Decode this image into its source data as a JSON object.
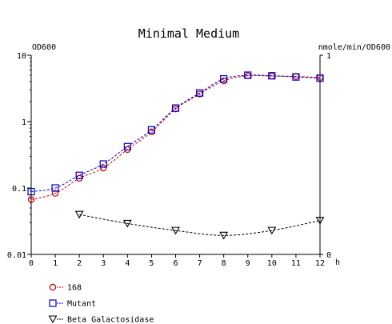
{
  "chart_data": {
    "type": "line",
    "title": "Minimal Medium",
    "xlabel": "h",
    "y_left_label": "OD600",
    "y_right_label": "nmole/min/OD600",
    "x_ticks": [
      "0",
      "1",
      "2",
      "3",
      "4",
      "5",
      "6",
      "7",
      "8",
      "9",
      "10",
      "11",
      "12"
    ],
    "y_left_ticks": [
      "10",
      "1",
      "0.1",
      "0.01"
    ],
    "y_right_ticks": [
      "1",
      "0"
    ],
    "y_left_scale": "log",
    "y_left_range": [
      0.01,
      10
    ],
    "y_right_range": [
      0,
      1
    ],
    "x_range": [
      0,
      12
    ],
    "grid": false,
    "legend_position": "bottom-left",
    "series": [
      {
        "name": "168",
        "axis": "left",
        "color": "#cc0000",
        "marker": "circle",
        "x": [
          0,
          1,
          2,
          3,
          4,
          5,
          6,
          7,
          8,
          9,
          10,
          11,
          12
        ],
        "y": [
          0.067,
          0.083,
          0.14,
          0.2,
          0.38,
          0.7,
          1.55,
          2.6,
          4.1,
          4.9,
          4.85,
          4.8,
          4.6
        ]
      },
      {
        "name": "Mutant",
        "axis": "left",
        "color": "#0000cc",
        "marker": "square",
        "x": [
          0,
          1,
          2,
          3,
          4,
          5,
          6,
          7,
          8,
          9,
          10,
          11,
          12
        ],
        "y": [
          0.088,
          0.1,
          0.155,
          0.23,
          0.42,
          0.75,
          1.6,
          2.7,
          4.4,
          5.0,
          4.9,
          4.7,
          4.5
        ]
      },
      {
        "name": "Beta Galactosidase",
        "axis": "right",
        "color": "#000000",
        "marker": "triangle-down",
        "x": [
          2,
          4,
          6,
          8,
          10,
          12
        ],
        "y": [
          0.2,
          0.155,
          0.12,
          0.095,
          0.12,
          0.17
        ]
      }
    ]
  }
}
